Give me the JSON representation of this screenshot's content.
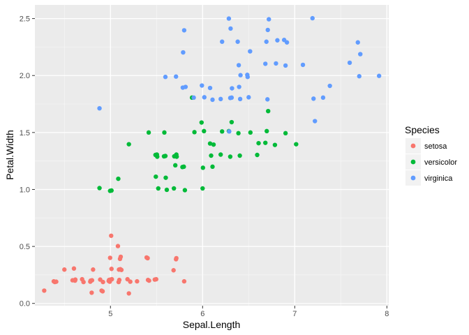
{
  "chart_data": {
    "type": "scatter",
    "title": "",
    "xlabel": "Sepal.Length",
    "ylabel": "Petal.Width",
    "xlim": [
      4.18,
      8.02
    ],
    "ylim": [
      -0.02,
      2.62
    ],
    "x_ticks": [
      5,
      6,
      7,
      8
    ],
    "x_tick_labels": [
      "5",
      "6",
      "7",
      "8"
    ],
    "y_ticks": [
      0.0,
      0.5,
      1.0,
      1.5,
      2.0,
      2.5
    ],
    "y_tick_labels": [
      "0.0",
      "0.5",
      "1.0",
      "1.5",
      "2.0",
      "2.5"
    ],
    "grid": true,
    "legend": {
      "title": "Species",
      "position": "right"
    },
    "series": [
      {
        "name": "setosa",
        "color": "#F8766D",
        "points": [
          [
            4.3,
            0.1
          ],
          [
            4.4,
            0.2
          ],
          [
            4.4,
            0.2
          ],
          [
            4.4,
            0.2
          ],
          [
            4.5,
            0.3
          ],
          [
            4.6,
            0.2
          ],
          [
            4.6,
            0.2
          ],
          [
            4.6,
            0.3
          ],
          [
            4.6,
            0.2
          ],
          [
            4.7,
            0.2
          ],
          [
            4.7,
            0.2
          ],
          [
            4.8,
            0.2
          ],
          [
            4.8,
            0.1
          ],
          [
            4.8,
            0.3
          ],
          [
            4.8,
            0.2
          ],
          [
            4.8,
            0.2
          ],
          [
            4.9,
            0.1
          ],
          [
            4.9,
            0.2
          ],
          [
            4.9,
            0.1
          ],
          [
            4.9,
            0.2
          ],
          [
            5.0,
            0.2
          ],
          [
            5.0,
            0.6
          ],
          [
            5.0,
            0.2
          ],
          [
            5.0,
            0.4
          ],
          [
            5.0,
            0.3
          ],
          [
            5.0,
            0.2
          ],
          [
            5.0,
            0.2
          ],
          [
            5.0,
            0.2
          ],
          [
            5.1,
            0.2
          ],
          [
            5.1,
            0.4
          ],
          [
            5.1,
            0.3
          ],
          [
            5.1,
            0.3
          ],
          [
            5.1,
            0.3
          ],
          [
            5.1,
            0.5
          ],
          [
            5.1,
            0.2
          ],
          [
            5.1,
            0.4
          ],
          [
            5.2,
            0.2
          ],
          [
            5.2,
            0.1
          ],
          [
            5.2,
            0.2
          ],
          [
            5.3,
            0.2
          ],
          [
            5.4,
            0.4
          ],
          [
            5.4,
            0.2
          ],
          [
            5.4,
            0.4
          ],
          [
            5.4,
            0.2
          ],
          [
            5.5,
            0.2
          ],
          [
            5.5,
            0.2
          ],
          [
            5.7,
            0.4
          ],
          [
            5.7,
            0.3
          ],
          [
            5.8,
            0.2
          ],
          [
            5.7,
            0.4
          ]
        ]
      },
      {
        "name": "versicolor",
        "color": "#00BA38",
        "points": [
          [
            4.9,
            1.0
          ],
          [
            5.0,
            1.0
          ],
          [
            5.0,
            1.0
          ],
          [
            5.1,
            1.1
          ],
          [
            5.2,
            1.4
          ],
          [
            5.4,
            1.5
          ],
          [
            5.5,
            1.3
          ],
          [
            5.5,
            1.3
          ],
          [
            5.5,
            1.0
          ],
          [
            5.5,
            1.1
          ],
          [
            5.5,
            1.3
          ],
          [
            5.6,
            1.3
          ],
          [
            5.6,
            1.3
          ],
          [
            5.6,
            1.0
          ],
          [
            5.6,
            1.5
          ],
          [
            5.6,
            1.1
          ],
          [
            5.7,
            1.3
          ],
          [
            5.7,
            1.0
          ],
          [
            5.7,
            1.2
          ],
          [
            5.7,
            1.3
          ],
          [
            5.7,
            1.3
          ],
          [
            5.8,
            1.0
          ],
          [
            5.8,
            1.2
          ],
          [
            5.8,
            1.2
          ],
          [
            5.9,
            1.5
          ],
          [
            5.9,
            1.8
          ],
          [
            6.0,
            1.0
          ],
          [
            6.0,
            1.5
          ],
          [
            6.0,
            1.6
          ],
          [
            6.0,
            1.2
          ],
          [
            6.1,
            1.4
          ],
          [
            6.1,
            1.3
          ],
          [
            6.1,
            1.2
          ],
          [
            6.1,
            1.4
          ],
          [
            6.2,
            1.3
          ],
          [
            6.2,
            1.5
          ],
          [
            6.3,
            1.5
          ],
          [
            6.3,
            1.3
          ],
          [
            6.3,
            1.6
          ],
          [
            6.4,
            1.5
          ],
          [
            6.4,
            1.3
          ],
          [
            6.5,
            1.5
          ],
          [
            6.6,
            1.3
          ],
          [
            6.6,
            1.4
          ],
          [
            6.7,
            1.4
          ],
          [
            6.7,
            1.5
          ],
          [
            6.7,
            1.7
          ],
          [
            6.8,
            1.4
          ],
          [
            6.9,
            1.5
          ],
          [
            7.0,
            1.4
          ]
        ]
      },
      {
        "name": "virginica",
        "color": "#619CFF",
        "points": [
          [
            4.9,
            1.7
          ],
          [
            5.6,
            2.0
          ],
          [
            5.7,
            2.0
          ],
          [
            5.8,
            1.9
          ],
          [
            5.8,
            2.4
          ],
          [
            5.8,
            1.9
          ],
          [
            5.8,
            2.2
          ],
          [
            5.9,
            1.8
          ],
          [
            6.0,
            1.8
          ],
          [
            6.0,
            1.9
          ],
          [
            6.1,
            1.8
          ],
          [
            6.1,
            1.9
          ],
          [
            6.2,
            1.8
          ],
          [
            6.2,
            2.3
          ],
          [
            6.3,
            2.5
          ],
          [
            6.3,
            1.8
          ],
          [
            6.3,
            1.8
          ],
          [
            6.3,
            1.5
          ],
          [
            6.3,
            2.4
          ],
          [
            6.3,
            1.9
          ],
          [
            6.4,
            2.1
          ],
          [
            6.4,
            1.8
          ],
          [
            6.4,
            2.3
          ],
          [
            6.4,
            1.9
          ],
          [
            6.4,
            2.0
          ],
          [
            6.5,
            2.0
          ],
          [
            6.5,
            1.8
          ],
          [
            6.5,
            2.2
          ],
          [
            6.5,
            2.0
          ],
          [
            6.7,
            1.8
          ],
          [
            6.7,
            2.5
          ],
          [
            6.7,
            2.3
          ],
          [
            6.7,
            2.4
          ],
          [
            6.7,
            2.1
          ],
          [
            6.8,
            2.1
          ],
          [
            6.8,
            2.3
          ],
          [
            6.9,
            2.3
          ],
          [
            6.9,
            2.1
          ],
          [
            6.9,
            2.3
          ],
          [
            7.1,
            2.1
          ],
          [
            7.2,
            1.8
          ],
          [
            7.2,
            1.6
          ],
          [
            7.2,
            2.5
          ],
          [
            7.3,
            1.8
          ],
          [
            7.4,
            1.9
          ],
          [
            7.6,
            2.1
          ],
          [
            7.7,
            2.2
          ],
          [
            7.7,
            2.3
          ],
          [
            7.7,
            2.0
          ],
          [
            7.9,
            2.0
          ]
        ]
      }
    ]
  }
}
